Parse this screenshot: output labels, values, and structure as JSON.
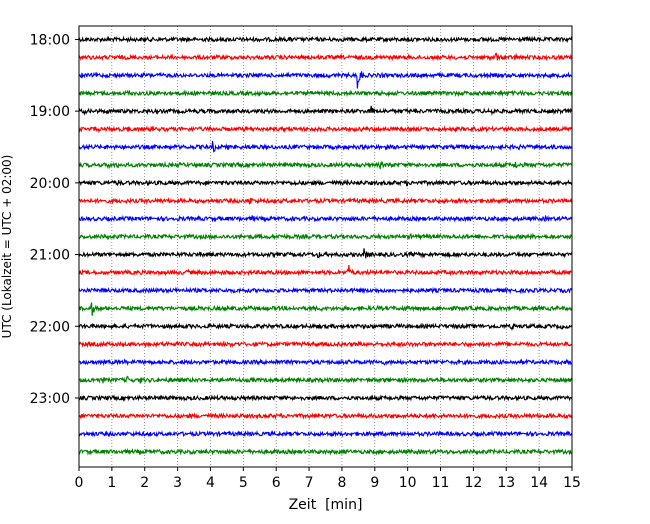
{
  "chart_data": {
    "type": "line",
    "title": "",
    "xlabel": "Zeit  [min]",
    "ylabel": "UTC (Lokalzeit = UTC + 02:00)",
    "xlim": [
      0,
      15
    ],
    "x_ticks": [
      "0",
      "1",
      "2",
      "3",
      "4",
      "5",
      "6",
      "7",
      "8",
      "9",
      "10",
      "11",
      "12",
      "13",
      "14",
      "15"
    ],
    "y_tick_labels": [
      "18:00",
      "19:00",
      "20:00",
      "21:00",
      "22:00",
      "23:00"
    ],
    "grid": "vertical dotted",
    "legend": "none",
    "colors": [
      "#000000",
      "#ff0000",
      "#0000ff",
      "#008000"
    ],
    "series": [
      {
        "start": "18:00",
        "color": "#000000",
        "events": [
          [
            3.1,
            0.3
          ],
          [
            4.6,
            0.3
          ],
          [
            6.4,
            0.4
          ]
        ]
      },
      {
        "start": "18:15",
        "color": "#ff0000",
        "events": [
          [
            10.2,
            0.3
          ],
          [
            11.4,
            0.35
          ],
          [
            12.7,
            0.8
          ],
          [
            13.3,
            0.5
          ],
          [
            14.2,
            0.35
          ]
        ]
      },
      {
        "start": "18:30",
        "color": "#0000ff",
        "events": [
          [
            0.1,
            0.5
          ],
          [
            0.6,
            0.4
          ],
          [
            2.2,
            0.3
          ],
          [
            7.6,
            0.4
          ],
          [
            8.5,
            1.9
          ],
          [
            9.2,
            0.4
          ],
          [
            13.0,
            0.3
          ]
        ]
      },
      {
        "start": "18:45",
        "color": "#008000",
        "events": [
          [
            1.5,
            0.5
          ],
          [
            2.6,
            0.5
          ],
          [
            4.5,
            0.3
          ],
          [
            14.9,
            0.4
          ]
        ]
      },
      {
        "start": "19:00",
        "color": "#000000",
        "events": [
          [
            0.2,
            0.4
          ],
          [
            0.9,
            0.35
          ],
          [
            8.9,
            0.9
          ],
          [
            12.6,
            0.6
          ],
          [
            13.8,
            0.4
          ]
        ]
      },
      {
        "start": "19:15",
        "color": "#ff0000",
        "events": [
          [
            0.5,
            0.4
          ],
          [
            1.5,
            0.45
          ],
          [
            4.2,
            0.35
          ],
          [
            8.6,
            0.3
          ]
        ]
      },
      {
        "start": "19:30",
        "color": "#0000ff",
        "events": [
          [
            4.1,
            0.9
          ],
          [
            8.7,
            0.4
          ],
          [
            9.4,
            0.4
          ],
          [
            11.2,
            0.3
          ],
          [
            13.4,
            0.4
          ]
        ]
      },
      {
        "start": "19:45",
        "color": "#008000",
        "events": [
          [
            0.9,
            0.6
          ],
          [
            1.2,
            0.5
          ],
          [
            9.2,
            0.6
          ],
          [
            9.5,
            0.5
          ],
          [
            10.5,
            0.5
          ],
          [
            13.3,
            0.6
          ],
          [
            14.1,
            0.4
          ]
        ]
      },
      {
        "start": "20:00",
        "color": "#000000",
        "events": [
          [
            1.2,
            0.45
          ],
          [
            2.5,
            0.6
          ],
          [
            6.6,
            0.4
          ],
          [
            10.0,
            0.45
          ],
          [
            11.7,
            0.35
          ]
        ]
      },
      {
        "start": "20:15",
        "color": "#ff0000",
        "events": [
          [
            3.9,
            0.3
          ],
          [
            5.2,
            0.8
          ],
          [
            6.0,
            0.3
          ],
          [
            11.0,
            0.3
          ]
        ]
      },
      {
        "start": "20:30",
        "color": "#0000ff",
        "events": [
          [
            4.9,
            0.4
          ],
          [
            5.3,
            0.5
          ],
          [
            6.5,
            0.35
          ],
          [
            14.2,
            0.4
          ]
        ]
      },
      {
        "start": "20:45",
        "color": "#008000",
        "events": [
          [
            6.1,
            0.4
          ],
          [
            10.1,
            0.4
          ],
          [
            14.3,
            0.3
          ]
        ]
      },
      {
        "start": "21:00",
        "color": "#000000",
        "events": [
          [
            3.7,
            0.4
          ],
          [
            7.3,
            0.5
          ],
          [
            8.7,
            0.9
          ]
        ]
      },
      {
        "start": "21:15",
        "color": "#ff0000",
        "events": [
          [
            3.3,
            0.5
          ],
          [
            4.5,
            0.35
          ],
          [
            8.2,
            1.3
          ]
        ]
      },
      {
        "start": "21:30",
        "color": "#0000ff",
        "events": [
          [
            3.8,
            0.3
          ],
          [
            7.0,
            0.3
          ],
          [
            14.1,
            0.3
          ]
        ]
      },
      {
        "start": "21:45",
        "color": "#008000",
        "events": [
          [
            0.4,
            1.1
          ],
          [
            7.4,
            0.6
          ],
          [
            9.1,
            0.4
          ],
          [
            9.9,
            0.5
          ],
          [
            11.6,
            0.3
          ]
        ]
      },
      {
        "start": "22:00",
        "color": "#000000",
        "events": [
          [
            2.2,
            0.4
          ],
          [
            5.3,
            0.4
          ],
          [
            9.2,
            0.35
          ],
          [
            13.2,
            0.6
          ],
          [
            14.7,
            0.4
          ]
        ]
      },
      {
        "start": "22:15",
        "color": "#ff0000",
        "events": [
          [
            2.7,
            0.4
          ],
          [
            11.4,
            0.3
          ]
        ]
      },
      {
        "start": "22:30",
        "color": "#0000ff",
        "events": [
          [
            1.4,
            0.35
          ],
          [
            6.0,
            0.45
          ],
          [
            9.3,
            0.4
          ]
        ]
      },
      {
        "start": "22:45",
        "color": "#008000",
        "events": [
          [
            0.4,
            0.4
          ],
          [
            0.7,
            0.7
          ],
          [
            1.5,
            0.6
          ],
          [
            1.9,
            0.5
          ],
          [
            9.1,
            0.35
          ]
        ]
      },
      {
        "start": "23:00",
        "color": "#000000",
        "events": [
          [
            7.0,
            0.25
          ]
        ]
      },
      {
        "start": "23:15",
        "color": "#ff0000",
        "events": []
      },
      {
        "start": "23:30",
        "color": "#0000ff",
        "events": [
          [
            1.5,
            0.35
          ],
          [
            12.1,
            0.35
          ],
          [
            12.4,
            0.3
          ]
        ]
      },
      {
        "start": "23:45",
        "color": "#008000",
        "events": []
      }
    ]
  }
}
